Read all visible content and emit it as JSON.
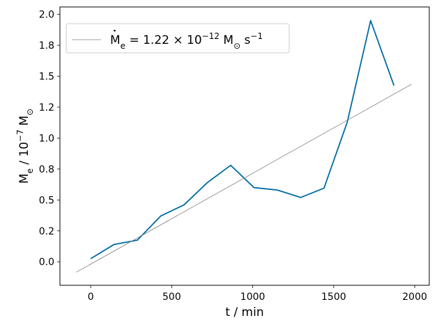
{
  "chart_data": {
    "type": "line",
    "xlabel": "t / min",
    "ylabel_parts": {
      "main": "M",
      "sub": "e",
      "sep": " / 10",
      "exp": "−7",
      "unit": " M",
      "unit_sym": "⊙"
    },
    "xlim": [
      -190,
      2090
    ],
    "ylim": [
      -0.19,
      2.06
    ],
    "x_ticks": [
      0,
      500,
      1000,
      1500,
      2000
    ],
    "x_tick_labels": [
      "0",
      "500",
      "1000",
      "1500",
      "2000"
    ],
    "y_ticks": [
      0.0,
      0.25,
      0.5,
      0.75,
      1.0,
      1.25,
      1.5,
      1.75,
      2.0
    ],
    "y_tick_labels": [
      "0.0",
      "0.2",
      "0.5",
      "0.8",
      "1.0",
      "1.2",
      "1.5",
      "1.8",
      "2.0"
    ],
    "grid": false,
    "legend_position": "top-left",
    "series": [
      {
        "color": "#006ba4",
        "style": "solid",
        "x": [
          0,
          144,
          288,
          432,
          576,
          720,
          864,
          1008,
          1152,
          1296,
          1440,
          1584,
          1728,
          1872
        ],
        "y": [
          0.025,
          0.14,
          0.175,
          0.37,
          0.46,
          0.64,
          0.78,
          0.6,
          0.58,
          0.52,
          0.595,
          1.13,
          1.95,
          1.425
        ]
      },
      {
        "color": "#808080",
        "style": "thin",
        "x": [
          -90,
          1980
        ],
        "y": [
          -0.085,
          1.435
        ]
      }
    ],
    "legend": {
      "label_parts": {
        "pre": "M",
        "sub": "e",
        "eq": " = 1.22 × 10",
        "exp": "−12",
        "unit": " M",
        "unit_sym": "⊙",
        "rate": " s",
        "rate_exp": "−1"
      }
    }
  }
}
